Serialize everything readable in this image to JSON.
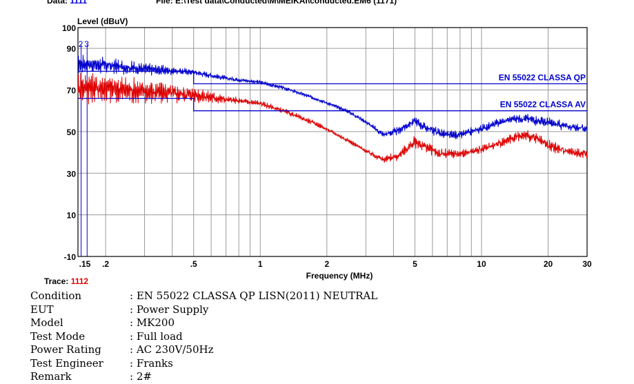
{
  "header": {
    "data_label": "Data:",
    "data_value": "1111",
    "file_label": "File:",
    "file_value": "E:\\Test data\\Conducted\\M\\MEIKAI\\conducted.EM6",
    "file_count": "(1171)"
  },
  "chart_data": {
    "type": "line",
    "ylabel": "Level (dBuV)",
    "xlabel": "Frequency (MHz)",
    "x_scale": "log",
    "xlim": [
      0.15,
      30
    ],
    "ylim": [
      -10,
      100
    ],
    "x_ticks": [
      {
        "v": 0.15,
        "label": ".15"
      },
      {
        "v": 0.2,
        "label": ".2"
      },
      {
        "v": 0.5,
        "label": ".5"
      },
      {
        "v": 1,
        "label": "1"
      },
      {
        "v": 2,
        "label": "2"
      },
      {
        "v": 5,
        "label": "5"
      },
      {
        "v": 10,
        "label": "10"
      },
      {
        "v": 20,
        "label": "20"
      },
      {
        "v": 30,
        "label": "30"
      }
    ],
    "y_ticks": [
      {
        "v": -10,
        "label": "-10"
      },
      {
        "v": 10,
        "label": "10"
      },
      {
        "v": 30,
        "label": "30"
      },
      {
        "v": 50,
        "label": "50"
      },
      {
        "v": 70,
        "label": "70"
      },
      {
        "v": 90,
        "label": "90"
      },
      {
        "v": 100,
        "label": "100"
      }
    ],
    "grid": true,
    "limit_lines": [
      {
        "name": "EN 55022 CLASSA QP",
        "color": "#0000cc",
        "points": [
          [
            0.15,
            79
          ],
          [
            0.5,
            79
          ],
          [
            0.5,
            73
          ],
          [
            30,
            73
          ]
        ]
      },
      {
        "name": "EN 55022 CLASSA AV",
        "color": "#0000cc",
        "points": [
          [
            0.15,
            66
          ],
          [
            0.5,
            66
          ],
          [
            0.5,
            60
          ],
          [
            30,
            60
          ]
        ]
      }
    ],
    "series": [
      {
        "color": "#0000cc",
        "envelope": [
          [
            0.15,
            84
          ],
          [
            0.2,
            83
          ],
          [
            0.3,
            81
          ],
          [
            0.5,
            79
          ],
          [
            0.7,
            76
          ],
          [
            1.0,
            74
          ],
          [
            1.3,
            71
          ],
          [
            1.8,
            66
          ],
          [
            2.5,
            60
          ],
          [
            3.0,
            55
          ],
          [
            3.6,
            49
          ],
          [
            4.2,
            51
          ],
          [
            5.0,
            56
          ],
          [
            5.5,
            53
          ],
          [
            6.5,
            50
          ],
          [
            7.0,
            49
          ],
          [
            8.0,
            49
          ],
          [
            10,
            52
          ],
          [
            12,
            55
          ],
          [
            14,
            57
          ],
          [
            16,
            57
          ],
          [
            18,
            56
          ],
          [
            20,
            55
          ],
          [
            25,
            53
          ],
          [
            30,
            52
          ]
        ],
        "ripple": [
          [
            0.15,
            4.5
          ],
          [
            0.3,
            3
          ],
          [
            0.5,
            1.5
          ],
          [
            1.0,
            1
          ],
          [
            3.0,
            1
          ],
          [
            5.0,
            2.5
          ],
          [
            10,
            2
          ],
          [
            20,
            2.5
          ],
          [
            30,
            2
          ]
        ]
      },
      {
        "color": "#dd0000",
        "envelope": [
          [
            0.15,
            74
          ],
          [
            0.2,
            73
          ],
          [
            0.3,
            71
          ],
          [
            0.5,
            69
          ],
          [
            0.7,
            66
          ],
          [
            1.0,
            64
          ],
          [
            1.3,
            60
          ],
          [
            1.8,
            54
          ],
          [
            2.5,
            46
          ],
          [
            3.0,
            41
          ],
          [
            3.6,
            37
          ],
          [
            4.2,
            39
          ],
          [
            5.0,
            46
          ],
          [
            5.5,
            44
          ],
          [
            6.5,
            40
          ],
          [
            7.0,
            40
          ],
          [
            8.0,
            40
          ],
          [
            10,
            42
          ],
          [
            12,
            45
          ],
          [
            14,
            48
          ],
          [
            16,
            49
          ],
          [
            18,
            47
          ],
          [
            20,
            44
          ],
          [
            25,
            41
          ],
          [
            30,
            40
          ]
        ],
        "ripple": [
          [
            0.15,
            8
          ],
          [
            0.3,
            6
          ],
          [
            0.5,
            4
          ],
          [
            0.7,
            2
          ],
          [
            1.0,
            1.5
          ],
          [
            3.0,
            1
          ],
          [
            5.0,
            3
          ],
          [
            10,
            2
          ],
          [
            20,
            3
          ],
          [
            30,
            2
          ]
        ]
      }
    ],
    "markers": [
      {
        "x": 0.155,
        "y": 1,
        "label": "2"
      },
      {
        "x": 0.165,
        "y": 1,
        "label": "3"
      }
    ]
  },
  "trace": {
    "label": "Trace:",
    "value": "1112"
  },
  "info": [
    {
      "label": "Condition",
      "value": ": EN 55022 CLASSA QP LISN(2011) NEUTRAL"
    },
    {
      "label": "EUT",
      "value": ": Power Supply"
    },
    {
      "label": "Model",
      "value": ": MK200"
    },
    {
      "label": "Test Mode",
      "value": ": Full load"
    },
    {
      "label": "Power Rating",
      "value": ": AC 230V/50Hz"
    },
    {
      "label": "Test Engineer",
      "value": ": Franks"
    },
    {
      "label": "Remark",
      "value": ": 2#"
    }
  ]
}
